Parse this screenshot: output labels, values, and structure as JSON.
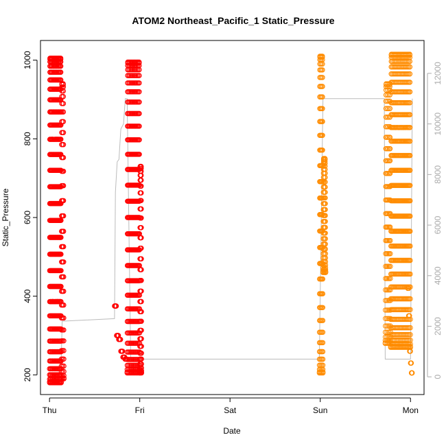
{
  "chart_data": {
    "type": "scatter",
    "title": "ATOM2 Northeast_Pacific_1 Static_Pressure",
    "xlabel": "Date",
    "ylabel": "Static_Pressure",
    "x_ticks": [
      "Thu",
      "Fri",
      "Sat",
      "Sun",
      "Mon"
    ],
    "xlim_days": [
      -0.1,
      4.15
    ],
    "ylim": [
      150,
      1050
    ],
    "y_ticks": [
      200,
      400,
      600,
      800,
      1000
    ],
    "y2_ticks": [
      0,
      2000,
      4000,
      6000,
      8000,
      10000,
      12000
    ],
    "y2lim": [
      -700,
      13300
    ],
    "grid": false,
    "series": [
      {
        "color": "#ff0000",
        "style": "points",
        "segments": [
          {
            "x0": 0.0,
            "x1": 0.13,
            "y_low": 180,
            "y_high": 1005,
            "cycles": 12
          },
          {
            "x0": 0.13,
            "x1": 0.16,
            "y_low": 190,
            "y_high": 940,
            "cycles": 2
          },
          {
            "x0": 0.72,
            "x1": 0.86,
            "y": [
              375,
              300,
              290,
              260,
              245,
              240
            ]
          },
          {
            "x0": 0.86,
            "x1": 1.0,
            "y_low": 205,
            "y_high": 995,
            "cycles": 10
          },
          {
            "x0": 1.0,
            "x1": 1.02,
            "y_low": 205,
            "y_high": 730,
            "cycles": 2
          }
        ]
      },
      {
        "color": "#ff8c00",
        "style": "points",
        "segments": [
          {
            "x0": 2.99,
            "x1": 3.03,
            "y_low": 205,
            "y_high": 1010,
            "cycles": 3
          },
          {
            "x0": 3.03,
            "x1": 3.06,
            "y_low": 460,
            "y_high": 750,
            "cycles": 2
          },
          {
            "x0": 3.72,
            "x1": 3.78,
            "y_low": 280,
            "y_high": 940,
            "cycles": 3
          },
          {
            "x0": 3.78,
            "x1": 4.0,
            "y_low": 270,
            "y_high": 1015,
            "cycles": 14
          },
          {
            "x0": 3.97,
            "x1": 4.02,
            "y": [
              420,
              350,
              260,
              230,
              205
            ]
          }
        ]
      },
      {
        "color": "#bbbbbb",
        "style": "line",
        "axis": "right",
        "points": [
          [
            0.0,
            700
          ],
          [
            0.13,
            700
          ],
          [
            0.14,
            2200
          ],
          [
            0.72,
            2300
          ],
          [
            0.73,
            7300
          ],
          [
            0.75,
            8500
          ],
          [
            0.77,
            8600
          ],
          [
            0.79,
            9800
          ],
          [
            0.82,
            10000
          ],
          [
            0.84,
            11000
          ],
          [
            0.86,
            11000
          ],
          [
            0.9,
            700
          ],
          [
            1.0,
            700
          ],
          [
            2.99,
            700
          ],
          [
            3.03,
            11000
          ],
          [
            3.71,
            11000
          ],
          [
            3.72,
            700
          ],
          [
            4.0,
            700
          ],
          [
            4.02,
            11000
          ]
        ]
      }
    ]
  }
}
